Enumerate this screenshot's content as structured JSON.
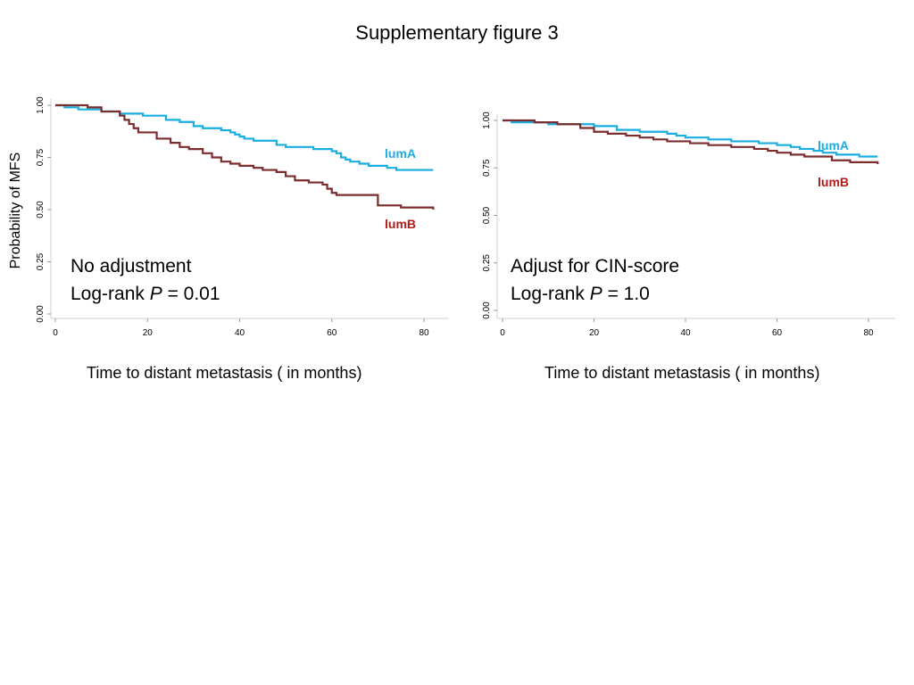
{
  "title": "Supplementary figure 3",
  "chart_data": [
    {
      "type": "line",
      "step": true,
      "ylabel": "Probability of MFS",
      "xlabel": "Time to distant metastasis ( in months)",
      "xlim": [
        0,
        82
      ],
      "ylim": [
        0,
        1
      ],
      "xticks": [
        "0",
        "20",
        "40",
        "60",
        "80"
      ],
      "yticks": [
        "0.00",
        "0.25",
        "0.50",
        "0.75",
        "1.00"
      ],
      "annotation": {
        "line1": "No adjustment",
        "line2_prefix": "Log-rank ",
        "line2_p": "P",
        "line2_value": " = 0.01"
      },
      "series": [
        {
          "name": "lumA",
          "color": "#1aaee0",
          "x": [
            0,
            2,
            5,
            10,
            14,
            19,
            24,
            27,
            30,
            32,
            36,
            38,
            39,
            40,
            41,
            43,
            48,
            50,
            56,
            60,
            61,
            62,
            63,
            64,
            66,
            68,
            72,
            74,
            76,
            78,
            82
          ],
          "y": [
            1,
            0.99,
            0.98,
            0.97,
            0.96,
            0.95,
            0.93,
            0.92,
            0.9,
            0.89,
            0.88,
            0.87,
            0.86,
            0.85,
            0.84,
            0.83,
            0.81,
            0.8,
            0.79,
            0.78,
            0.77,
            0.75,
            0.74,
            0.73,
            0.72,
            0.71,
            0.7,
            0.69,
            0.69,
            0.69,
            0.69
          ]
        },
        {
          "name": "lumB",
          "color": "#7b2c2c",
          "x": [
            0,
            7,
            10,
            14,
            15,
            16,
            17,
            18,
            22,
            25,
            27,
            29,
            32,
            34,
            36,
            38,
            40,
            43,
            45,
            48,
            50,
            52,
            55,
            58,
            59,
            60,
            61,
            62,
            68,
            70,
            75,
            82
          ],
          "y": [
            1,
            0.99,
            0.97,
            0.95,
            0.93,
            0.91,
            0.89,
            0.87,
            0.84,
            0.82,
            0.8,
            0.79,
            0.77,
            0.75,
            0.73,
            0.72,
            0.71,
            0.7,
            0.69,
            0.68,
            0.66,
            0.64,
            0.63,
            0.62,
            0.6,
            0.58,
            0.57,
            0.57,
            0.57,
            0.52,
            0.51,
            0.5
          ]
        }
      ]
    },
    {
      "type": "line",
      "step": true,
      "ylabel": "",
      "xlabel": "Time to distant metastasis ( in months)",
      "xlim": [
        0,
        82
      ],
      "ylim": [
        0,
        1
      ],
      "xticks": [
        "0",
        "20",
        "40",
        "60",
        "80"
      ],
      "yticks": [
        "0.00",
        "0.25",
        "0.50",
        "0.75",
        "1.00"
      ],
      "annotation": {
        "line1": "Adjust for CIN-score",
        "line2_prefix": "Log-rank ",
        "line2_p": "P",
        "line2_value": " = 1.0"
      },
      "series": [
        {
          "name": "lumA",
          "color": "#1aaee0",
          "x": [
            0,
            2,
            10,
            20,
            25,
            30,
            36,
            38,
            40,
            45,
            50,
            56,
            60,
            63,
            65,
            68,
            70,
            73,
            78,
            82
          ],
          "y": [
            1,
            0.99,
            0.98,
            0.97,
            0.95,
            0.94,
            0.93,
            0.92,
            0.91,
            0.9,
            0.89,
            0.88,
            0.87,
            0.86,
            0.85,
            0.84,
            0.83,
            0.82,
            0.81,
            0.81
          ]
        },
        {
          "name": "lumB",
          "color": "#7b2c2c",
          "x": [
            0,
            7,
            12,
            17,
            20,
            23,
            27,
            30,
            33,
            36,
            41,
            45,
            50,
            55,
            58,
            60,
            63,
            66,
            70,
            72,
            76,
            82
          ],
          "y": [
            1,
            0.99,
            0.98,
            0.96,
            0.94,
            0.93,
            0.92,
            0.91,
            0.9,
            0.89,
            0.88,
            0.87,
            0.86,
            0.85,
            0.84,
            0.83,
            0.82,
            0.81,
            0.81,
            0.79,
            0.78,
            0.77
          ]
        }
      ]
    }
  ]
}
